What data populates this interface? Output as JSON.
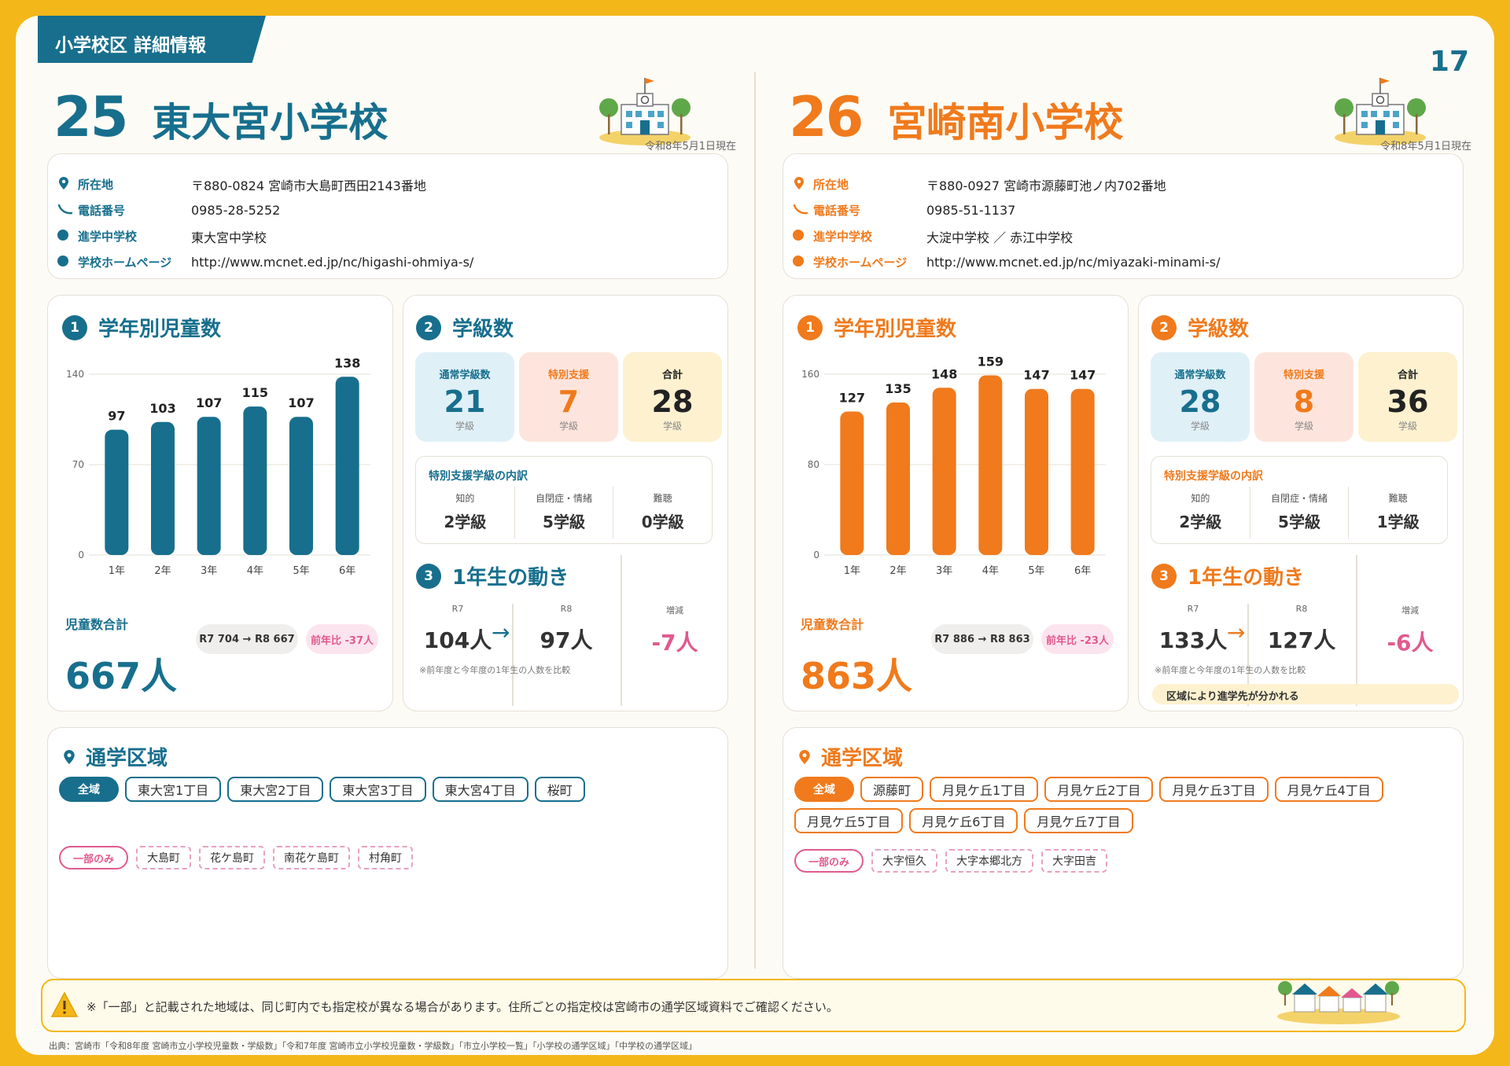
{
  "header": {
    "section_tab": "小学校区 詳細情報",
    "page_number": "17"
  },
  "colors": {
    "teal": "#176F8D",
    "orange": "#F07A1C",
    "pink": "#E05A8E",
    "yellow": "#F4B71A"
  },
  "schools": [
    {
      "number": "25",
      "name": "東大宮小学校",
      "as_of": "令和8年5月1日現在",
      "accent": "#176F8D",
      "info": [
        {
          "icon": "location-pin-icon",
          "label": "所在地",
          "value": "〒880-0824 宮崎市大島町西田2143番地"
        },
        {
          "icon": "phone-icon",
          "label": "電話番号",
          "value": "0985-28-5252"
        },
        {
          "icon": "dot-icon",
          "label": "進学中学校",
          "value": "東大宮中学校"
        },
        {
          "icon": "dot-icon",
          "label": "学校ホームページ",
          "value": "http://www.mcnet.ed.jp/nc/higashi-ohmiya-s/"
        }
      ],
      "students_heading": "学年別児童数",
      "total_label": "児童数合計",
      "total_value": "667人",
      "compare": "R7 704 → R8 667",
      "yoy": "前年比 -37人",
      "classes_heading": "学級数",
      "class_boxes": [
        {
          "title": "通常学級数",
          "value": "21",
          "unit": "学級"
        },
        {
          "title": "特別支援",
          "value": "7",
          "unit": "学級"
        },
        {
          "title": "合計",
          "value": "28",
          "unit": "学級"
        }
      ],
      "special_heading": "特別支援学級の内訳",
      "special": [
        {
          "k": "知的",
          "v": "2学級"
        },
        {
          "k": "自閉症・情緒",
          "v": "5学級"
        },
        {
          "k": "難聴",
          "v": "0学級"
        }
      ],
      "first_heading": "1年生の動き",
      "first": [
        {
          "k": "R7",
          "v": "104人"
        },
        {
          "k": "R8",
          "v": "97人"
        },
        {
          "k": "増減",
          "v": "-7人"
        }
      ],
      "first_note": "※前年度と今年度の1年生の人数を比較",
      "area_heading": "通学区域",
      "all_label": "全域",
      "all_areas": [
        "東大宮1丁目",
        "東大宮2丁目",
        "東大宮3丁目",
        "東大宮4丁目",
        "桜町"
      ],
      "partial_label": "一部のみ",
      "partial_areas": [
        "大島町",
        "花ケ島町",
        "南花ケ島町",
        "村角町"
      ]
    },
    {
      "number": "26",
      "name": "宮崎南小学校",
      "as_of": "令和8年5月1日現在",
      "accent": "#F07A1C",
      "info": [
        {
          "icon": "location-pin-icon",
          "label": "所在地",
          "value": "〒880-0927 宮崎市源藤町池ノ内702番地"
        },
        {
          "icon": "phone-icon",
          "label": "電話番号",
          "value": "0985-51-1137"
        },
        {
          "icon": "dot-icon",
          "label": "進学中学校",
          "value": "大淀中学校 ／ 赤江中学校"
        },
        {
          "icon": "dot-icon",
          "label": "学校ホームページ",
          "value": "http://www.mcnet.ed.jp/nc/miyazaki-minami-s/"
        }
      ],
      "students_heading": "学年別児童数",
      "total_label": "児童数合計",
      "total_value": "863人",
      "compare": "R7 886 → R8 863",
      "yoy": "前年比 -23人",
      "classes_heading": "学級数",
      "class_boxes": [
        {
          "title": "通常学級数",
          "value": "28",
          "unit": "学級"
        },
        {
          "title": "特別支援",
          "value": "8",
          "unit": "学級"
        },
        {
          "title": "合計",
          "value": "36",
          "unit": "学級"
        }
      ],
      "special_heading": "特別支援学級の内訳",
      "special": [
        {
          "k": "知的",
          "v": "2学級"
        },
        {
          "k": "自閉症・情緒",
          "v": "5学級"
        },
        {
          "k": "難聴",
          "v": "1学級"
        }
      ],
      "first_heading": "1年生の動き",
      "first": [
        {
          "k": "R7",
          "v": "133人"
        },
        {
          "k": "R8",
          "v": "127人"
        },
        {
          "k": "増減",
          "v": "-6人"
        }
      ],
      "first_note": "※前年度と今年度の1年生の人数を比較",
      "callout": "区域により進学先が分かれる",
      "area_heading": "通学区域",
      "all_label": "全域",
      "all_areas": [
        "源藤町",
        "月見ケ丘1丁目",
        "月見ケ丘2丁目",
        "月見ケ丘3丁目",
        "月見ケ丘4丁目",
        "月見ケ丘5丁目",
        "月見ケ丘6丁目",
        "月見ケ丘7丁目"
      ],
      "partial_label": "一部のみ",
      "partial_areas": [
        "大字恒久",
        "大字本郷北方",
        "大字田吉"
      ]
    }
  ],
  "chart_data": [
    {
      "type": "bar",
      "categories": [
        "1年",
        "2年",
        "3年",
        "4年",
        "5年",
        "6年"
      ],
      "values": [
        97,
        103,
        107,
        115,
        107,
        138
      ],
      "ylim": [
        0,
        140
      ],
      "yticks": [
        0,
        70,
        140
      ],
      "color": "#176F8D"
    },
    {
      "type": "bar",
      "categories": [
        "1年",
        "2年",
        "3年",
        "4年",
        "5年",
        "6年"
      ],
      "values": [
        127,
        135,
        148,
        159,
        147,
        147
      ],
      "ylim": [
        0,
        160
      ],
      "yticks": [
        0,
        80,
        160
      ],
      "color": "#F07A1C"
    }
  ],
  "footer": {
    "note": "※「一部」と記載された地域は、同じ町内でも指定校が異なる場合があります。住所ごとの指定校は宮崎市の通学区域資料でご確認ください。"
  },
  "source": "出典：宮崎市「令和8年度 宮崎市立小学校児童数・学級数」「令和7年度 宮崎市立小学校児童数・学級数」「市立小学校一覧」「小学校の通学区域」「中学校の通学区域」"
}
